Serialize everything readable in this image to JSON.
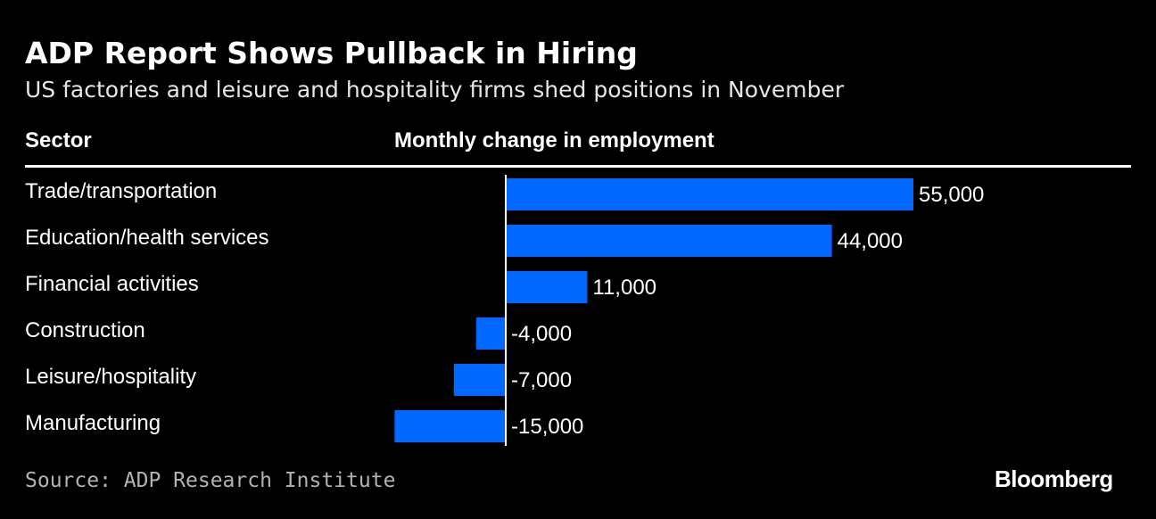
{
  "title": "ADP Report Shows Pullback in Hiring",
  "subtitle": "US factories and leisure and hospitality firms shed positions in November",
  "source": "Source: ADP Research Institute",
  "logo": "Bloomberg",
  "colors": {
    "bar": "#0068ff",
    "background": "#000000"
  },
  "chart_data": {
    "type": "bar",
    "orientation": "horizontal",
    "column_headers": [
      "Sector",
      "Monthly change in employment"
    ],
    "categories": [
      "Trade/transportation",
      "Education/health services",
      "Financial activities",
      "Construction",
      "Leisure/hospitality",
      "Manufacturing"
    ],
    "values": [
      55000,
      44000,
      11000,
      -4000,
      -7000,
      -15000
    ],
    "value_labels": [
      "55,000",
      "44,000",
      "11,000",
      "-4,000",
      "-7,000",
      "-15,000"
    ],
    "xlim": [
      -15000,
      55000
    ]
  }
}
